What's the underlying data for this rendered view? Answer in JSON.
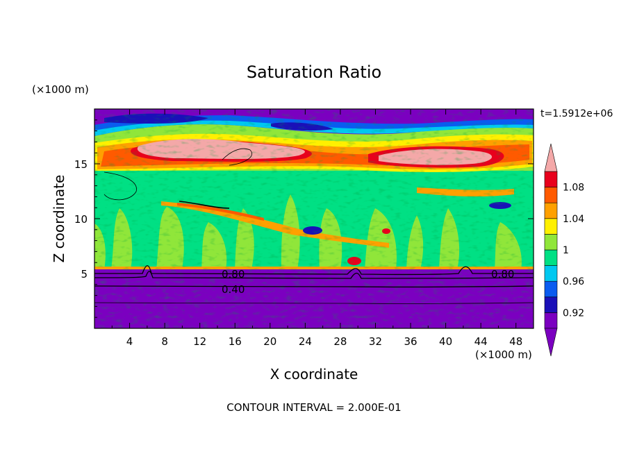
{
  "chart_data": {
    "type": "heatmap",
    "title": "Saturation Ratio",
    "xlabel": "X coordinate",
    "ylabel": "Z coordinate",
    "x_unit": "(×1000 m)",
    "y_unit": "(×1000 m)",
    "time_label": "t=1.5912e+06",
    "footer": "CONTOUR INTERVAL = 2.000E-01",
    "xlim": [
      0,
      50
    ],
    "ylim": [
      0,
      20
    ],
    "x_ticks": [
      4,
      8,
      12,
      16,
      20,
      24,
      28,
      32,
      36,
      40,
      44,
      48
    ],
    "y_ticks": [
      5,
      10,
      15
    ],
    "colorbar": {
      "levels": [
        0.9,
        0.92,
        0.94,
        0.96,
        0.98,
        1.0,
        1.02,
        1.04,
        1.06,
        1.08,
        1.1
      ],
      "tick_labels": [
        "0.92",
        "0.96",
        "1",
        "1.04",
        "1.08"
      ],
      "tick_values": [
        0.92,
        0.96,
        1.0,
        1.04,
        1.08
      ],
      "colors": [
        "#7B00C0",
        "#1A10B8",
        "#0A5CF0",
        "#00C8F0",
        "#00E084",
        "#90E63A",
        "#FFF000",
        "#FFA000",
        "#FF5A00",
        "#E8001C",
        "#F4A8A8"
      ],
      "extend": "both"
    },
    "contour_labels": [
      {
        "text": "0.80",
        "x": 15.8,
        "z": 5.0
      },
      {
        "text": "0.40",
        "x": 15.8,
        "z": 3.6
      },
      {
        "text": "0.80",
        "x": 46.5,
        "z": 5.0
      }
    ],
    "layers": [
      {
        "z_range": [
          0,
          5.3
        ],
        "value": "< 0.90"
      },
      {
        "z_range": [
          5.3,
          14.0
        ],
        "value": "~0.98 - 1.02"
      },
      {
        "z_range": [
          14.0,
          17.5
        ],
        "value": "1.04 - > 1.10"
      },
      {
        "z_range": [
          17.5,
          20.0
        ],
        "value": "< 0.94"
      }
    ]
  }
}
